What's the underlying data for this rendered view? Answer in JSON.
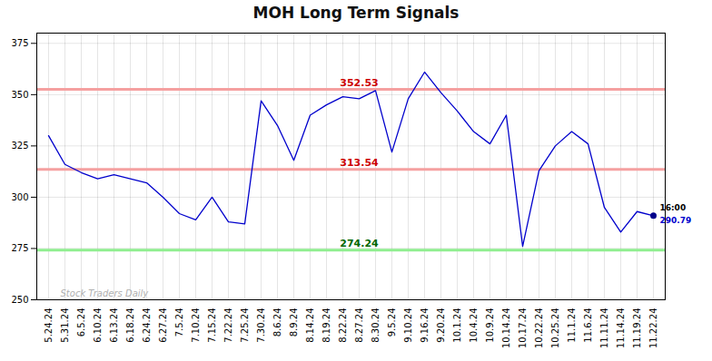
{
  "chart_data": {
    "type": "line",
    "title": "MOH Long Term Signals",
    "categories": [
      "5.24.24",
      "5.31.24",
      "6.5.24",
      "6.10.24",
      "6.13.24",
      "6.18.24",
      "6.24.24",
      "6.27.24",
      "7.5.24",
      "7.10.24",
      "7.15.24",
      "7.22.24",
      "7.25.24",
      "7.30.24",
      "8.6.24",
      "8.9.24",
      "8.14.24",
      "8.19.24",
      "8.22.24",
      "8.27.24",
      "8.30.24",
      "9.5.24",
      "9.10.24",
      "9.16.24",
      "9.20.24",
      "10.1.24",
      "10.4.24",
      "10.9.24",
      "10.14.24",
      "10.17.24",
      "10.22.24",
      "10.25.24",
      "11.1.24",
      "11.6.24",
      "11.11.24",
      "11.14.24",
      "11.19.24",
      "11.22.24"
    ],
    "values": [
      330,
      316,
      312,
      309,
      311,
      309,
      307,
      300,
      292,
      289,
      300,
      288,
      287,
      347,
      335,
      318,
      340,
      345,
      349,
      348,
      352,
      322,
      348,
      361,
      351,
      342,
      332,
      326,
      340,
      276,
      313,
      325,
      332,
      326,
      295,
      283,
      293,
      291
    ],
    "color": "#0000cc",
    "ylim": [
      250,
      380
    ],
    "yticks": [
      250,
      275,
      300,
      325,
      350,
      375
    ],
    "grid": true,
    "reference_lines": [
      {
        "value": 352.53,
        "label": "352.53",
        "color": "#f5a0a0",
        "label_color": "#cc0000"
      },
      {
        "value": 313.54,
        "label": "313.54",
        "color": "#f5a0a0",
        "label_color": "#cc0000"
      },
      {
        "value": 274.24,
        "label": "274.24",
        "color": "#90ee90",
        "label_color": "#006600"
      }
    ],
    "last_point_color": "#00008b",
    "last_point_labels": [
      {
        "text": "16:00",
        "color": "#000000"
      },
      {
        "text": "290.79",
        "color": "#0000cc"
      }
    ],
    "watermark": {
      "text": "Stock Traders Daily",
      "color": "#b0b0b0"
    }
  }
}
